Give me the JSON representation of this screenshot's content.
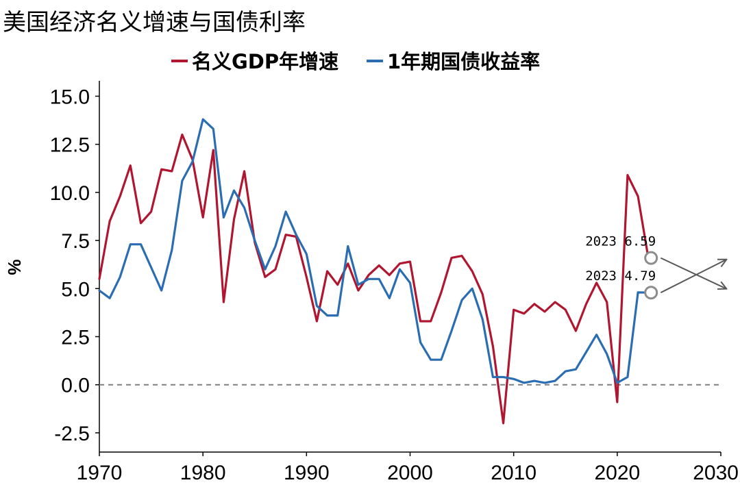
{
  "chart_data": {
    "type": "line",
    "title": "美国经济名义增速与国债利率",
    "xlabel": "",
    "ylabel": "%",
    "xlim": [
      1970,
      2030
    ],
    "ylim": [
      -3.5,
      15.8
    ],
    "x_ticks": [
      1970,
      1980,
      1990,
      2000,
      2010,
      2020,
      2030
    ],
    "x_tick_labels": [
      "1970",
      "1980",
      "1990",
      "2000",
      "2010",
      "2020",
      "2030"
    ],
    "y_ticks": [
      -2.5,
      0,
      2.5,
      5,
      7.5,
      10,
      12.5,
      15
    ],
    "y_tick_labels": [
      "-2.5",
      "0.0",
      "2.5",
      "5.0",
      "7.5",
      "10.0",
      "12.5",
      "15.0"
    ],
    "legend_position": "top-center",
    "reference_line": {
      "y": 0,
      "style": "dashed",
      "color": "#7f7f7f"
    },
    "colors": {
      "gdp": "#b0162f",
      "yield": "#2a6db3",
      "marker": "#8c8c8c",
      "arrow": "#595959",
      "axis": "#000000"
    },
    "series": [
      {
        "key": "gdp",
        "name": "名义GDP年增速",
        "x": [
          1970,
          1971,
          1972,
          1973,
          1974,
          1975,
          1976,
          1977,
          1978,
          1979,
          1980,
          1981,
          1982,
          1983,
          1984,
          1985,
          1986,
          1987,
          1988,
          1989,
          1990,
          1991,
          1992,
          1993,
          1994,
          1995,
          1996,
          1997,
          1998,
          1999,
          2000,
          2001,
          2002,
          2003,
          2004,
          2005,
          2006,
          2007,
          2008,
          2009,
          2010,
          2011,
          2012,
          2013,
          2014,
          2015,
          2016,
          2017,
          2018,
          2019,
          2020,
          2021,
          2022,
          2023
        ],
        "values": [
          5.5,
          8.5,
          9.8,
          11.4,
          8.4,
          9.0,
          11.2,
          11.1,
          13.0,
          11.7,
          8.7,
          12.2,
          4.3,
          8.6,
          11.1,
          7.4,
          5.6,
          6.0,
          7.8,
          7.7,
          5.6,
          3.3,
          5.9,
          5.2,
          6.3,
          4.9,
          5.7,
          6.2,
          5.7,
          6.3,
          6.4,
          3.3,
          3.3,
          4.8,
          6.6,
          6.7,
          5.9,
          4.7,
          2.0,
          -2.0,
          3.9,
          3.7,
          4.2,
          3.8,
          4.3,
          3.9,
          2.8,
          4.2,
          5.3,
          4.3,
          -0.9,
          10.9,
          9.8,
          6.59
        ]
      },
      {
        "key": "yield",
        "name": "1年期国债收益率",
        "x": [
          1970,
          1971,
          1972,
          1973,
          1974,
          1975,
          1976,
          1977,
          1978,
          1979,
          1980,
          1981,
          1982,
          1983,
          1984,
          1985,
          1986,
          1987,
          1988,
          1989,
          1990,
          1991,
          1992,
          1993,
          1994,
          1995,
          1996,
          1997,
          1998,
          1999,
          2000,
          2001,
          2002,
          2003,
          2004,
          2005,
          2006,
          2007,
          2008,
          2009,
          2010,
          2011,
          2012,
          2013,
          2014,
          2015,
          2016,
          2017,
          2018,
          2019,
          2020,
          2021,
          2022,
          2023
        ],
        "values": [
          4.9,
          4.5,
          5.6,
          7.3,
          7.3,
          6.1,
          4.9,
          7.0,
          10.6,
          11.6,
          13.8,
          13.3,
          8.7,
          10.1,
          9.2,
          7.5,
          6.0,
          7.2,
          9.0,
          7.8,
          6.8,
          4.1,
          3.6,
          3.6,
          7.2,
          5.2,
          5.5,
          5.5,
          4.5,
          6.0,
          5.3,
          2.2,
          1.3,
          1.3,
          2.8,
          4.4,
          5.0,
          3.4,
          0.4,
          0.4,
          0.3,
          0.1,
          0.2,
          0.1,
          0.2,
          0.7,
          0.8,
          1.7,
          2.6,
          1.6,
          0.1,
          0.4,
          4.8,
          4.79
        ]
      }
    ],
    "annotations": [
      {
        "series": "gdp",
        "x": 2023,
        "y": 6.59,
        "text": "2023 6.59"
      },
      {
        "series": "yield",
        "x": 2023,
        "y": 4.79,
        "text": "2023 4.79"
      }
    ],
    "crossing_arrows": [
      {
        "from": [
          2024.2,
          4.79
        ],
        "to": [
          2030.5,
          6.5
        ]
      },
      {
        "from": [
          2024.2,
          6.59
        ],
        "to": [
          2030.5,
          5.0
        ]
      }
    ]
  }
}
